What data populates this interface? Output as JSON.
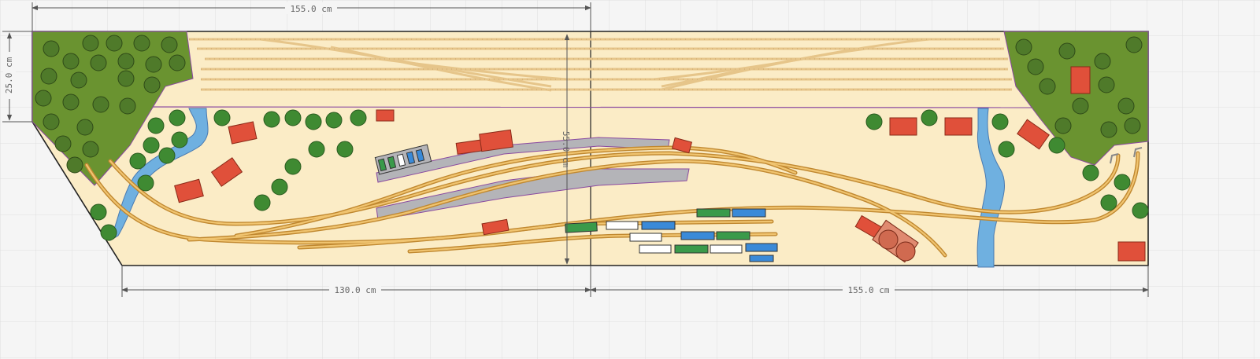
{
  "dimensions": {
    "top_width": "155.0 cm",
    "left_height": "25.0 cm",
    "bottom_left_width": "130.0 cm",
    "bottom_right_width": "155.0 cm",
    "center_depth": "55.0 cm"
  },
  "colors": {
    "background": "#f4f4f4",
    "grid": "#dcdcdc",
    "baseboard": "#fbecc6",
    "forest": "#6a9330",
    "tree": "#4f7a2a",
    "tree_light": "#3f9a3a",
    "water": "#6fb0e0",
    "platform": "#b4b4b8",
    "track": "#e0a84a",
    "track_tie": "#7a5a20",
    "building": "#e0503a",
    "wagon_green": "#3a9a4a",
    "wagon_blue": "#3a8ad8",
    "wagon_white": "#ffffff",
    "border": "#222222"
  },
  "legend_icons": [
    "forest-area",
    "river",
    "tree",
    "building",
    "platform",
    "track",
    "rolling-stock"
  ]
}
